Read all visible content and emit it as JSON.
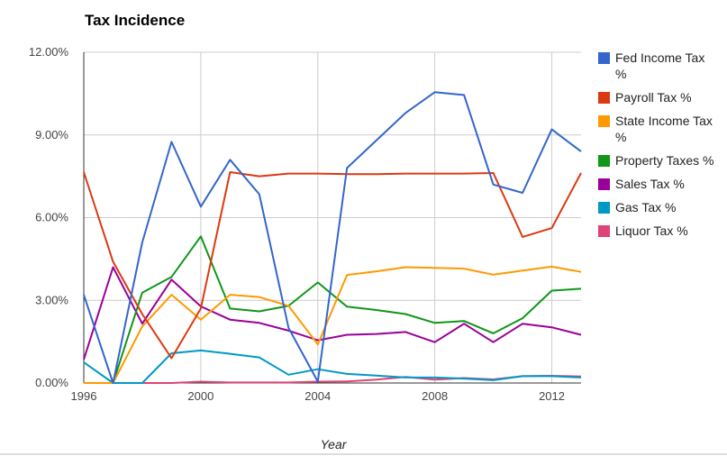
{
  "chart_data": {
    "type": "line",
    "title": "Tax Incidence",
    "xlabel": "Year",
    "ylabel": "",
    "xlim": [
      1996,
      2013
    ],
    "ylim": [
      0,
      12
    ],
    "x_ticks": [
      "1996",
      "2000",
      "2004",
      "2008",
      "2012"
    ],
    "y_ticks": [
      "0.00%",
      "3.00%",
      "6.00%",
      "9.00%",
      "12.00%"
    ],
    "grid": true,
    "legend_position": "right",
    "x": [
      1996,
      1997,
      1998,
      1999,
      2000,
      2001,
      2002,
      2003,
      2004,
      2005,
      2006,
      2007,
      2008,
      2009,
      2010,
      2011,
      2012,
      2013
    ],
    "series": [
      {
        "name": "Fed Income Tax %",
        "color": "#3366cc",
        "legend_lines": [
          "Fed Income Tax",
          "%"
        ],
        "values": [
          3.2,
          0.0,
          5.1,
          8.75,
          6.4,
          8.1,
          6.85,
          2.0,
          0.05,
          7.8,
          8.8,
          9.8,
          10.55,
          10.45,
          7.2,
          6.9,
          9.2,
          8.4
        ]
      },
      {
        "name": "Payroll Tax %",
        "color": "#dc3912",
        "legend_lines": [
          "Payroll Tax %"
        ],
        "values": [
          7.65,
          4.4,
          2.5,
          0.9,
          2.7,
          7.65,
          7.5,
          7.6,
          7.6,
          7.58,
          7.58,
          7.6,
          7.6,
          7.6,
          7.62,
          5.3,
          5.62,
          7.62
        ]
      },
      {
        "name": "State Income Tax %",
        "color": "#ff9900",
        "legend_lines": [
          "State Income Tax",
          "%"
        ],
        "values": [
          0.0,
          0.0,
          2.05,
          3.2,
          2.3,
          3.2,
          3.12,
          2.8,
          1.4,
          3.92,
          4.05,
          4.2,
          4.18,
          4.15,
          3.93,
          4.08,
          4.22,
          4.03
        ]
      },
      {
        "name": "Property Taxes %",
        "color": "#109618",
        "legend_lines": [
          "Property Taxes %"
        ],
        "values": [
          0.0,
          0.0,
          3.28,
          3.85,
          5.32,
          2.7,
          2.6,
          2.8,
          3.65,
          2.77,
          2.65,
          2.5,
          2.18,
          2.25,
          1.8,
          2.35,
          3.35,
          3.42
        ]
      },
      {
        "name": "Sales Tax %",
        "color": "#990099",
        "legend_lines": [
          "Sales Tax %"
        ],
        "values": [
          0.85,
          4.2,
          2.15,
          3.75,
          2.78,
          2.3,
          2.18,
          1.9,
          1.55,
          1.75,
          1.78,
          1.85,
          1.48,
          2.15,
          1.48,
          2.15,
          2.02,
          1.75
        ]
      },
      {
        "name": "Gas Tax %",
        "color": "#0099c6",
        "legend_lines": [
          "Gas Tax %"
        ],
        "values": [
          0.75,
          0.0,
          0.0,
          1.08,
          1.18,
          1.06,
          0.93,
          0.3,
          0.5,
          0.33,
          0.27,
          0.2,
          0.2,
          0.16,
          0.1,
          0.25,
          0.25,
          0.2
        ]
      },
      {
        "name": "Liquor Tax %",
        "color": "#dd4477",
        "legend_lines": [
          "Liquor Tax %"
        ],
        "values": [
          0.0,
          0.0,
          0.0,
          0.0,
          0.05,
          0.02,
          0.02,
          0.02,
          0.05,
          0.06,
          0.12,
          0.22,
          0.12,
          0.18,
          0.13,
          0.25,
          0.26,
          0.24
        ]
      }
    ]
  }
}
